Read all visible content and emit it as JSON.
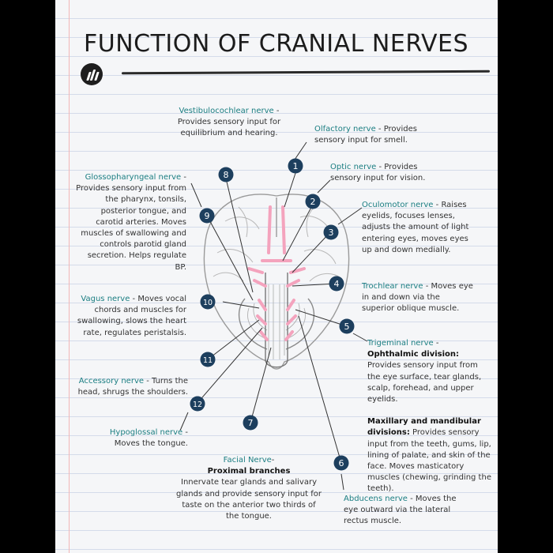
{
  "title": "FUNCTION OF CRANIAL NERVES",
  "nerves": {
    "n8": {
      "number": "8",
      "name": "Vestibulocochlear nerve",
      "desc": "Provides sensory input for equilibrium and hearing."
    },
    "n1": {
      "number": "1",
      "name": "Olfactory nerve",
      "desc": "Provides sensory input for smell."
    },
    "n2": {
      "number": "2",
      "name": "Optic nerve",
      "desc": "Provides sensory input for vision."
    },
    "n9": {
      "number": "9",
      "name": "Glossopharyngeal nerve",
      "desc": "Provides sensory input from the pharynx, tonsils, posterior tongue, and carotid arteries. Moves muscles of swallowing and controls parotid gland secretion. Helps regulate BP."
    },
    "n3": {
      "number": "3",
      "name": "Oculomotor nerve",
      "desc": "Raises eyelids, focuses lenses, adjusts the amount of light entering eyes, moves eyes up and down medially."
    },
    "n4": {
      "number": "4",
      "name": "Trochlear nerve",
      "desc": "Moves eye in and down via the superior oblique muscle."
    },
    "n10": {
      "number": "10",
      "name": "Vagus nerve",
      "desc": "Moves vocal chords and muscles for swallowing, slows the heart rate, regulates peristalsis."
    },
    "n5": {
      "number": "5",
      "name": "Trigeminal nerve",
      "ophthalmic_label": "Ophthalmic division:",
      "ophthalmic_desc": "Provides sensory input from the eye surface, tear glands, scalp, forehead, and upper eyelids.",
      "maxillary_label": "Maxillary and mandibular divisions:",
      "maxillary_desc": "Provides sensory input from the teeth, gums, lip, lining of palate, and skin of the face. Moves masticatory muscles (chewing, grinding the teeth)."
    },
    "n11": {
      "number": "11",
      "name": "Accessory nerve",
      "desc": "Turns the head, shrugs the shoulders."
    },
    "n12": {
      "number": "12",
      "name": "Hypoglossal nerve",
      "desc": "Moves the tongue."
    },
    "n7": {
      "number": "7",
      "name": "Facial Nerve",
      "sub": "Proximal branches",
      "desc": "Innervate tear glands and salivary glands and provide sensory input for taste on the anterior two thirds of the tongue."
    },
    "n6": {
      "number": "6",
      "name": "Abducens nerve",
      "desc": "Moves the eye outward via the lateral rectus muscle."
    }
  },
  "colors": {
    "badge": "#1d3f5e",
    "nerve_name": "#1b7e82",
    "highlight": "#f4a3bd",
    "brain_outline": "#9a9a9a"
  }
}
